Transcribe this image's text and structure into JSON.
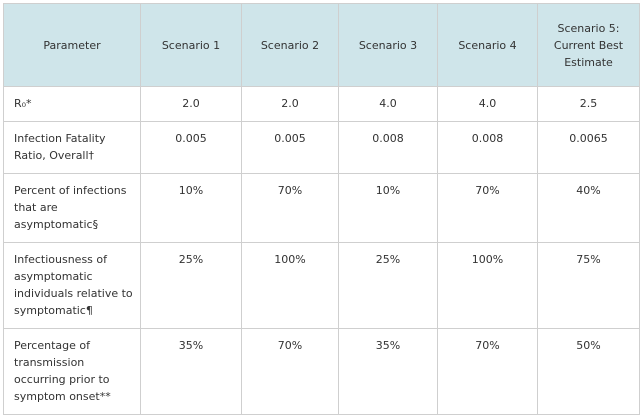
{
  "table": {
    "header": [
      "Parameter",
      "Scenario 1",
      "Scenario 2",
      "Scenario 3",
      "Scenario 4",
      "Scenario 5: Current Best Estimate"
    ],
    "rows": [
      [
        "R₀*",
        "2.0",
        "2.0",
        "4.0",
        "4.0",
        "2.5"
      ],
      [
        "Infection Fatality Ratio, Overall†",
        "0.005",
        "0.005",
        "0.008",
        "0.008",
        "0.0065"
      ],
      [
        "Percent of infections that are asymptomatic§",
        "10%",
        "70%",
        "10%",
        "70%",
        "40%"
      ],
      [
        "Infectiousness of asymptomatic individuals relative to symptomatic¶",
        "25%",
        "100%",
        "25%",
        "100%",
        "75%"
      ],
      [
        "Percentage of transmission occurring prior to symptom onset**",
        "35%",
        "70%",
        "35%",
        "70%",
        "50%"
      ]
    ]
  }
}
